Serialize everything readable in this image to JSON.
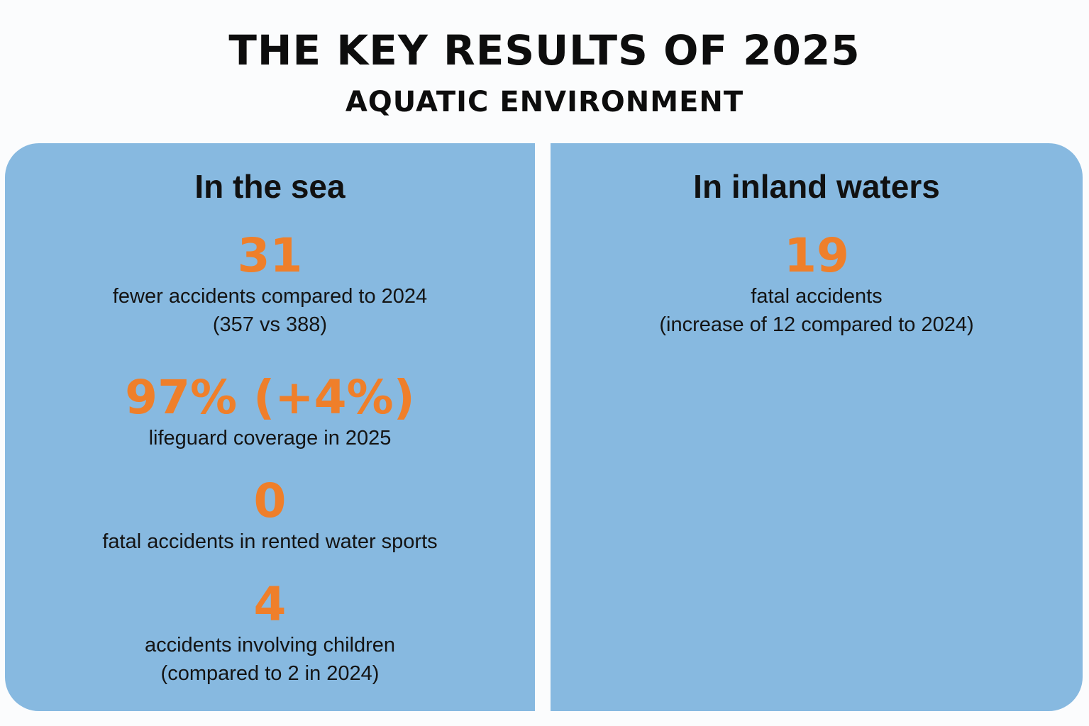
{
  "header": {
    "title": "THE KEY RESULTS OF 2025",
    "subtitle": "AQUATIC ENVIRONMENT"
  },
  "colors": {
    "panel_background": "#87b9e0",
    "stat_accent": "#ef7f2a",
    "text": "#111111"
  },
  "panels": [
    {
      "title": "In the sea",
      "stats": [
        {
          "value": "31",
          "desc_line1": "fewer accidents compared to 2024",
          "desc_line2": "(357 vs 388)"
        },
        {
          "value": "97% (+4%)",
          "desc_line1": "lifeguard coverage in 2025"
        },
        {
          "value": "0",
          "desc_line1": "fatal accidents in rented water sports"
        },
        {
          "value": "4",
          "desc_line1": "accidents involving children",
          "desc_line2": "(compared to 2 in 2024)"
        }
      ]
    },
    {
      "title": "In inland waters",
      "stats": [
        {
          "value": "19",
          "desc_line1": "fatal accidents",
          "desc_line2": "(increase of 12 compared to 2024)"
        }
      ]
    }
  ]
}
